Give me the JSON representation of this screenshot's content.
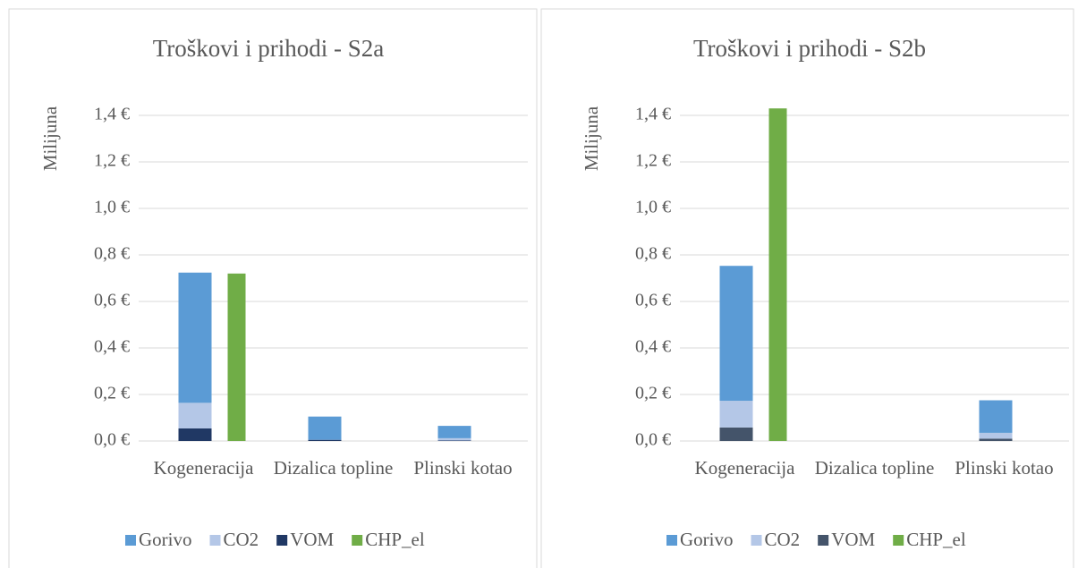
{
  "chart_data": [
    {
      "type": "bar",
      "title": "Troškovi i prihodi - S2a",
      "y_label": "Milijuna",
      "categories": [
        "Kogeneracija",
        "Dizalica topline",
        "Plinski kotao"
      ],
      "series": [
        {
          "name": "Gorivo",
          "color": "#5b9bd5",
          "values": [
            0.56,
            0.1,
            0.053
          ]
        },
        {
          "name": "CO2",
          "color": "#b4c7e7",
          "values": [
            0.11,
            0,
            0.01
          ]
        },
        {
          "name": "VOM",
          "color": "#203864",
          "values": [
            0.054,
            0.005,
            0.002
          ]
        },
        {
          "name": "CHP_el",
          "color": "#70ad47",
          "values": [
            0.72,
            0,
            0
          ]
        }
      ],
      "ylim": [
        0,
        1.5
      ],
      "yticks": [
        {
          "value": 0,
          "label": "0,0 €"
        },
        {
          "value": 0.2,
          "label": "0,2 €"
        },
        {
          "value": 0.4,
          "label": "0,4 €"
        },
        {
          "value": 0.6,
          "label": "0,6 €"
        },
        {
          "value": 0.8,
          "label": "0,8 €"
        },
        {
          "value": 1.0,
          "label": "1,0 €"
        },
        {
          "value": 1.2,
          "label": "1,2 €"
        },
        {
          "value": 1.4,
          "label": "1,4 €"
        }
      ],
      "grid": true,
      "legend": "bottom"
    },
    {
      "type": "bar",
      "title": "Troškovi i prihodi - S2b",
      "y_label": "Milijuna",
      "categories": [
        "Kogeneracija",
        "Dizalica topline",
        "Plinski kotao"
      ],
      "series": [
        {
          "name": "Gorivo",
          "color": "#5b9bd5",
          "values": [
            0.58,
            0,
            0.14
          ]
        },
        {
          "name": "CO2",
          "color": "#b4c7e7",
          "values": [
            0.115,
            0,
            0.025
          ]
        },
        {
          "name": "VOM",
          "color": "#44546a",
          "values": [
            0.058,
            0,
            0.01
          ]
        },
        {
          "name": "CHP_el",
          "color": "#70ad47",
          "values": [
            1.43,
            0,
            0
          ]
        }
      ],
      "ylim": [
        0,
        1.5
      ],
      "yticks": [
        {
          "value": 0,
          "label": "0,0 €"
        },
        {
          "value": 0.2,
          "label": "0,2 €"
        },
        {
          "value": 0.4,
          "label": "0,4 €"
        },
        {
          "value": 0.6,
          "label": "0,6 €"
        },
        {
          "value": 0.8,
          "label": "0,8 €"
        },
        {
          "value": 1.0,
          "label": "1,0 €"
        },
        {
          "value": 1.2,
          "label": "1,2 €"
        },
        {
          "value": 1.4,
          "label": "1,4 €"
        }
      ],
      "grid": true,
      "legend": "bottom"
    }
  ]
}
